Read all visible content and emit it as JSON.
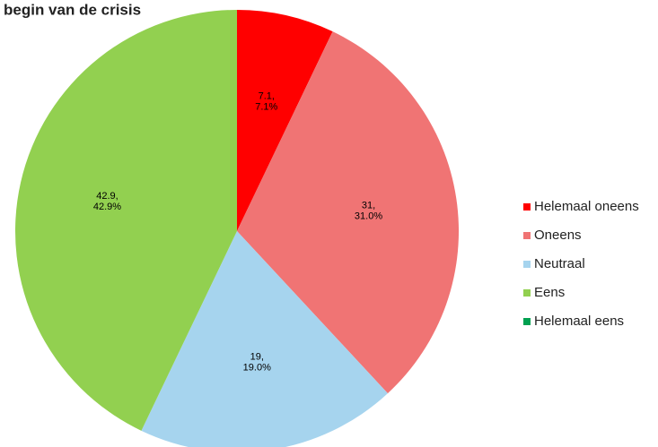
{
  "chart_data": {
    "type": "pie",
    "title": "begin van de crisis",
    "categories": [
      "Helemaal oneens",
      "Oneens",
      "Neutraal",
      "Eens",
      "Helemaal eens"
    ],
    "values": [
      7.1,
      31,
      19,
      42.9,
      0
    ],
    "value_labels": [
      "7.1,",
      "31,",
      "19,",
      "42.9,",
      null
    ],
    "percent_labels": [
      "7.1%",
      "31.0%",
      "19.0%",
      "42.9%",
      null
    ],
    "colors": [
      "#ff0000",
      "#f07474",
      "#a6d4ee",
      "#92d050",
      "#00a050"
    ],
    "legend": "right"
  }
}
